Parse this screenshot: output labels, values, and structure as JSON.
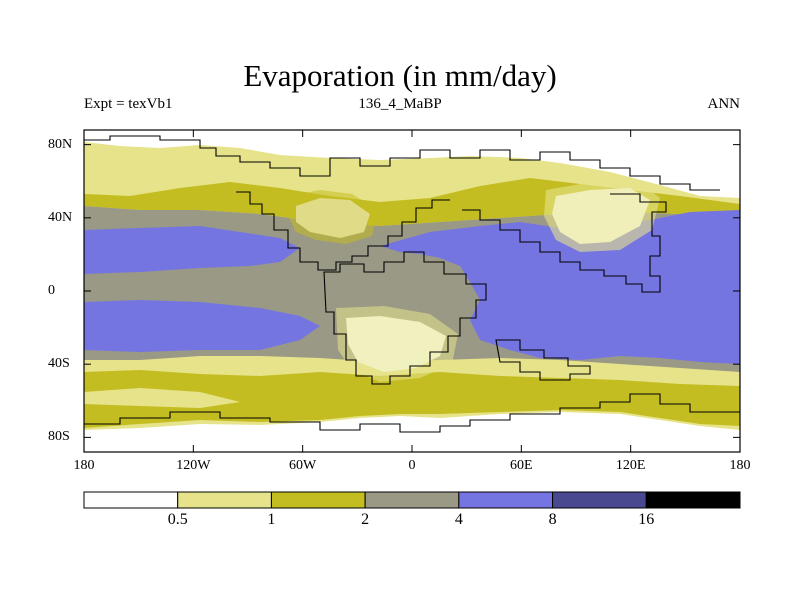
{
  "title": "Evaporation (in mm/day)",
  "experiment_label": "Expt = texVb1",
  "run_label": "136_4_MaBP",
  "season_label": "ANN",
  "colors": {
    "white": "#ffffff",
    "light": "#e6e38a",
    "olive": "#c4bd22",
    "gray": "#9a9985",
    "blue": "#7575e2",
    "navy": "#49498f",
    "black": "#000000"
  },
  "lat_ticks": [
    {
      "label": "80N",
      "value": 80
    },
    {
      "label": "40N",
      "value": 40
    },
    {
      "label": "0",
      "value": 0
    },
    {
      "label": "40S",
      "value": -40
    },
    {
      "label": "80S",
      "value": -80
    }
  ],
  "lon_ticks": [
    {
      "label": "180",
      "value": -180
    },
    {
      "label": "120W",
      "value": -120
    },
    {
      "label": "60W",
      "value": -60
    },
    {
      "label": "0",
      "value": 0
    },
    {
      "label": "60E",
      "value": 60
    },
    {
      "label": "120E",
      "value": 120
    },
    {
      "label": "180",
      "value": 180
    }
  ],
  "colorbar": {
    "levels": [
      "0.5",
      "1",
      "2",
      "4",
      "8",
      "16"
    ],
    "bins": [
      "white",
      "light",
      "olive",
      "gray",
      "blue",
      "navy",
      "black"
    ]
  }
}
